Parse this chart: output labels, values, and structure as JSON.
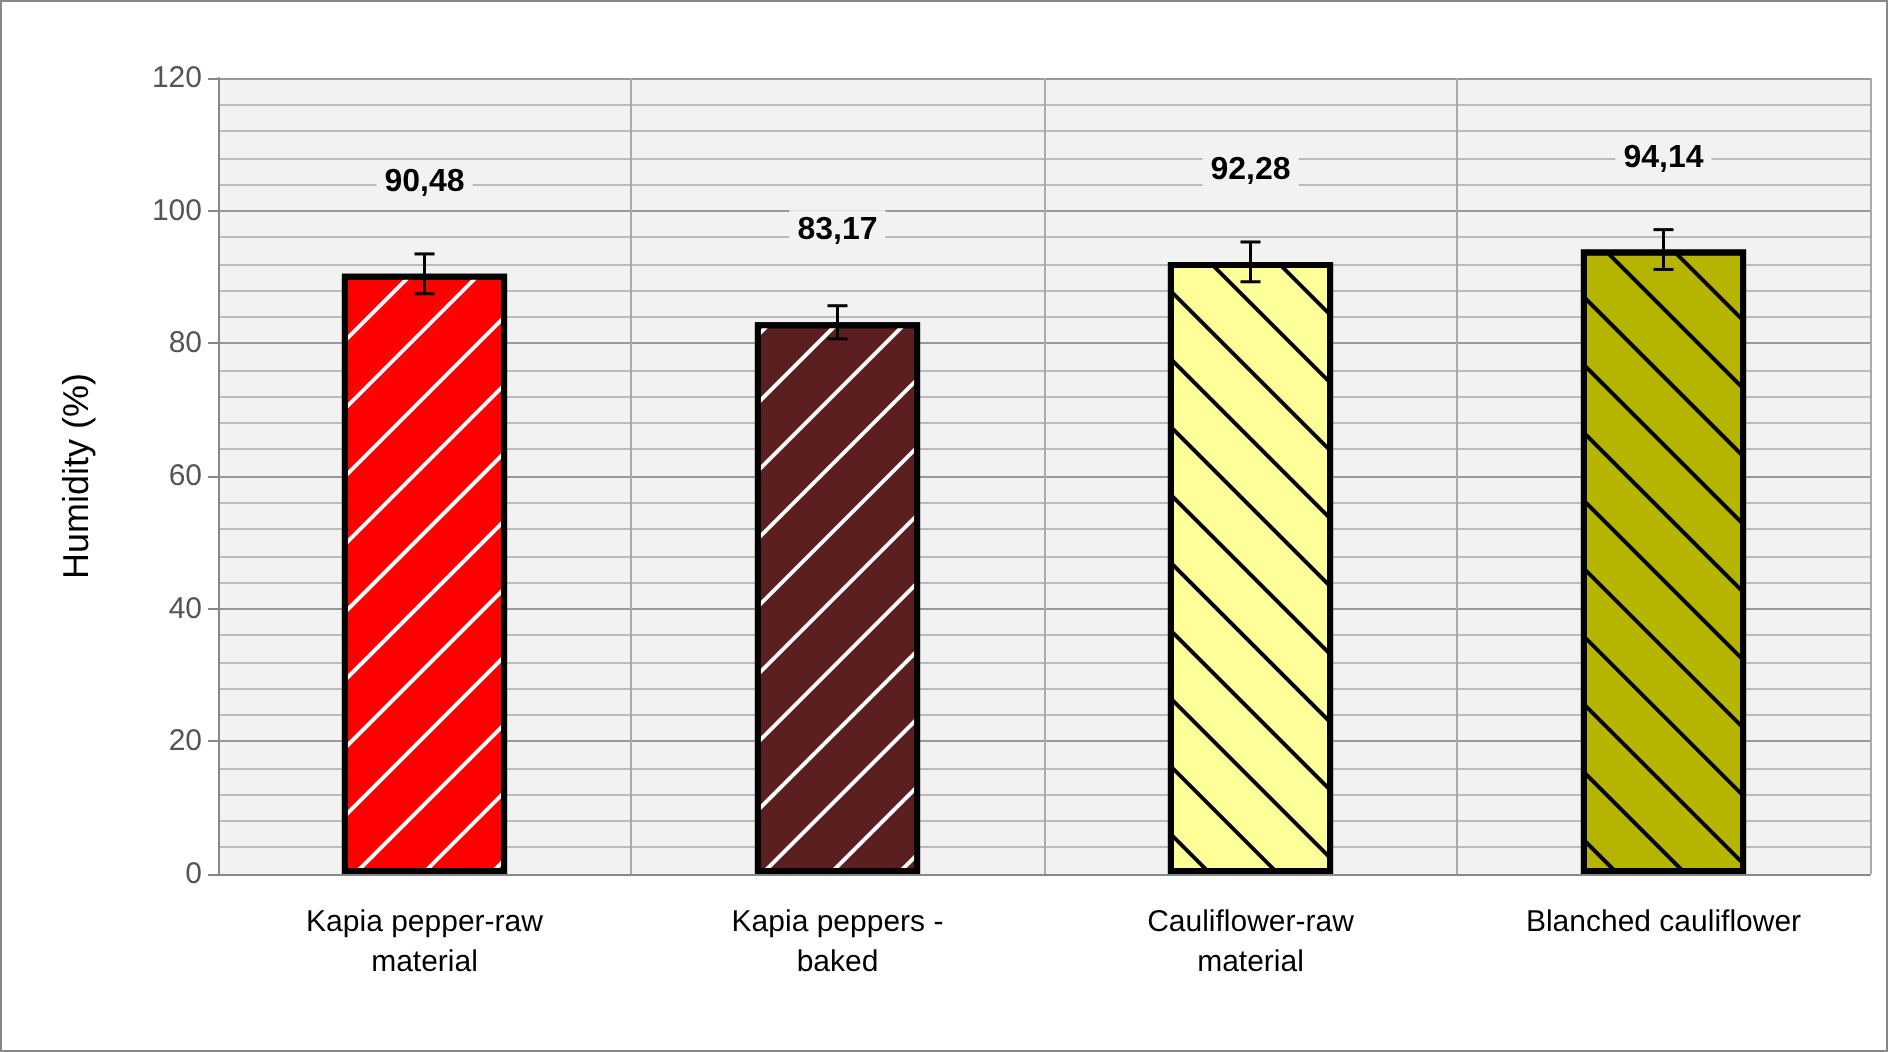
{
  "chart_data": {
    "type": "bar",
    "ylabel": "Humidity (%)",
    "categories": [
      "Kapia pepper-raw\nmaterial",
      "Kapia peppers -\nbaked",
      "Cauliflower-raw\nmaterial",
      "Blanched cauliflower"
    ],
    "values": [
      90.48,
      83.17,
      92.28,
      94.14
    ],
    "colors": [
      "#ff0000",
      "#5c1f1f",
      "#ffff99",
      "#b5b500"
    ],
    "errors": [
      3,
      2.5,
      3,
      3
    ],
    "value_labels": [
      "90,48",
      "83,17",
      "92,28",
      "94,14"
    ],
    "ylim": [
      0,
      120
    ],
    "yticks": [
      0,
      20,
      40,
      60,
      80,
      100,
      120
    ],
    "grid": true
  }
}
